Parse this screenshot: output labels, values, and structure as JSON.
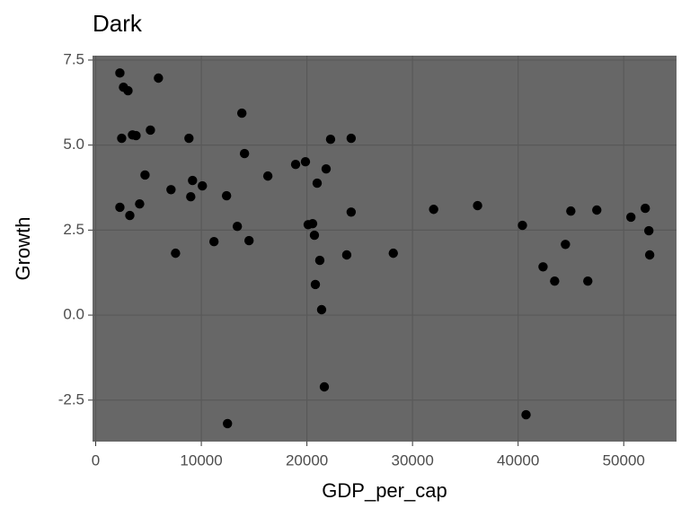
{
  "chart_data": {
    "type": "scatter",
    "title": "Dark",
    "x_label": "GDP_per_cap",
    "y_label": "Growth",
    "color": "#000000",
    "panel_color": "#676767",
    "grid_color": "#595959",
    "grid": true,
    "xlim": [
      -300,
      55000
    ],
    "ylim": [
      -3.72,
      7.63
    ],
    "xticks": [
      0,
      10000,
      20000,
      30000,
      40000,
      50000
    ],
    "yticks": [
      {
        "value": -2.5,
        "label": "-2.5"
      },
      {
        "value": 0,
        "label": "0.0"
      },
      {
        "value": 2.5,
        "label": "2.5"
      },
      {
        "value": 5,
        "label": "5.0"
      },
      {
        "value": 7.5,
        "label": "7.5"
      }
    ],
    "x": [
      2290,
      2630,
      3060,
      5940,
      2460,
      3480,
      3820,
      5180,
      8830,
      13840,
      14090,
      4670,
      9170,
      10100,
      7130,
      2290,
      3230,
      4160,
      9000,
      12390,
      7560,
      11200,
      13410,
      14520,
      16300,
      18930,
      19860,
      21820,
      22240,
      24190,
      20970,
      20120,
      20540,
      20710,
      24190,
      21220,
      20800,
      23770,
      21390,
      21650,
      12480,
      28180,
      32000,
      36160,
      40410,
      40750,
      42360,
      43460,
      44480,
      44990,
      46600,
      47450,
      50680,
      52040,
      52380,
      52460
    ],
    "y": [
      7.12,
      6.7,
      6.6,
      6.97,
      5.2,
      5.3,
      5.28,
      5.44,
      5.2,
      5.94,
      4.75,
      4.12,
      3.96,
      3.8,
      3.69,
      3.17,
      2.93,
      3.27,
      3.48,
      3.51,
      1.82,
      2.16,
      2.61,
      2.19,
      4.09,
      4.43,
      4.51,
      4.3,
      5.17,
      5.2,
      3.88,
      2.66,
      2.69,
      2.35,
      3.03,
      1.61,
      0.9,
      1.77,
      0.16,
      -2.11,
      -3.19,
      1.82,
      3.11,
      3.22,
      2.64,
      -2.93,
      1.42,
      1.0,
      2.08,
      3.06,
      1.0,
      3.09,
      2.88,
      3.14,
      2.48,
      1.77
    ]
  }
}
